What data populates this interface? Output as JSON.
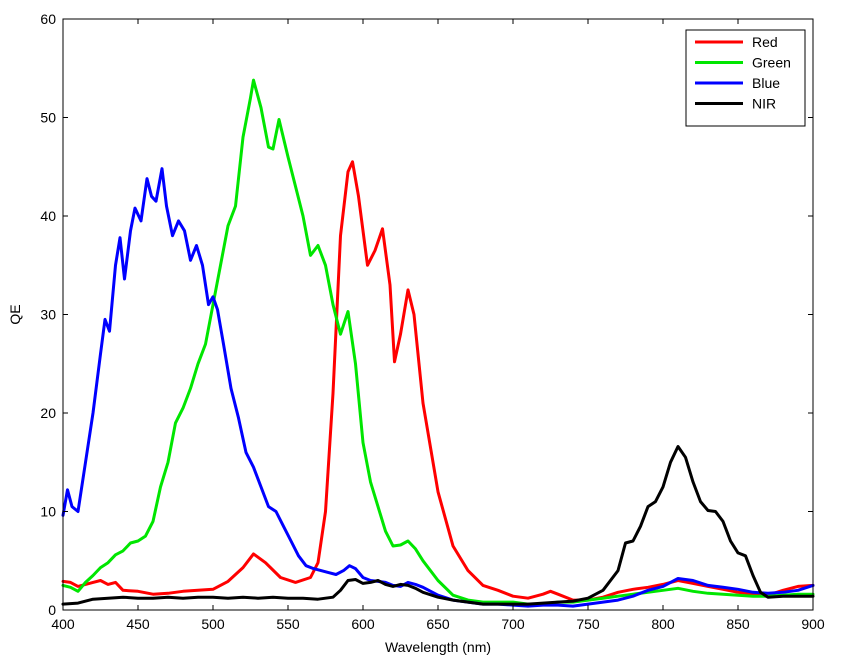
{
  "chart_data": {
    "type": "line",
    "title": "",
    "xlabel": "Wavelength (nm)",
    "ylabel": "QE",
    "xlim": [
      400,
      900
    ],
    "ylim": [
      0,
      60
    ],
    "xticks": [
      400,
      450,
      500,
      550,
      600,
      650,
      700,
      750,
      800,
      850,
      900
    ],
    "yticks": [
      0,
      10,
      20,
      30,
      40,
      50,
      60
    ],
    "xtick_labels": [
      "400",
      "450",
      "500",
      "550",
      "600",
      "650",
      "700",
      "750",
      "800",
      "850",
      "900"
    ],
    "ytick_labels": [
      "0",
      "10",
      "20",
      "30",
      "40",
      "50",
      "60"
    ],
    "grid": false,
    "legend_position": "top-right",
    "series": [
      {
        "name": "Red",
        "color": "#ff0000",
        "x": [
          400,
          405,
          410,
          420,
          425,
          430,
          435,
          440,
          450,
          460,
          470,
          480,
          490,
          500,
          510,
          520,
          527,
          535,
          545,
          555,
          565,
          570,
          575,
          580,
          585,
          590,
          593,
          597,
          603,
          608,
          613,
          618,
          621,
          625,
          630,
          634,
          640,
          650,
          660,
          670,
          680,
          690,
          700,
          710,
          720,
          725,
          730,
          740,
          750,
          760,
          770,
          780,
          790,
          800,
          810,
          820,
          830,
          840,
          850,
          860,
          870,
          880,
          890,
          900
        ],
        "y": [
          2.9,
          2.8,
          2.4,
          2.8,
          3.0,
          2.6,
          2.8,
          2.0,
          1.9,
          1.6,
          1.7,
          1.9,
          2.0,
          2.1,
          2.9,
          4.3,
          5.7,
          4.8,
          3.3,
          2.8,
          3.3,
          4.8,
          10.0,
          22.0,
          38.0,
          44.5,
          45.5,
          42.0,
          35.0,
          36.5,
          38.7,
          33.0,
          25.2,
          28.0,
          32.5,
          30.0,
          21.0,
          12.0,
          6.5,
          4.0,
          2.5,
          2.0,
          1.4,
          1.2,
          1.6,
          1.9,
          1.6,
          1.0,
          1.0,
          1.3,
          1.8,
          2.1,
          2.3,
          2.6,
          3.0,
          2.7,
          2.4,
          2.1,
          1.8,
          1.6,
          1.5,
          2.0,
          2.4,
          2.5
        ]
      },
      {
        "name": "Green",
        "color": "#00e600",
        "x": [
          400,
          405,
          410,
          415,
          420,
          425,
          430,
          435,
          440,
          445,
          450,
          455,
          460,
          465,
          470,
          475,
          480,
          485,
          490,
          495,
          500,
          505,
          510,
          515,
          520,
          525,
          527,
          532,
          537,
          540,
          544,
          550,
          555,
          560,
          565,
          570,
          575,
          580,
          585,
          590,
          595,
          600,
          605,
          610,
          615,
          620,
          625,
          630,
          635,
          640,
          650,
          660,
          670,
          680,
          690,
          700,
          710,
          720,
          730,
          740,
          750,
          760,
          770,
          780,
          790,
          800,
          810,
          820,
          830,
          840,
          850,
          860,
          870,
          880,
          890,
          900
        ],
        "y": [
          2.5,
          2.3,
          1.9,
          2.8,
          3.5,
          4.3,
          4.8,
          5.6,
          6.0,
          6.8,
          7.0,
          7.5,
          9.0,
          12.5,
          15.0,
          19.0,
          20.5,
          22.5,
          25.0,
          27.0,
          31.0,
          35.0,
          39.0,
          41.0,
          48.0,
          52.0,
          53.8,
          51.0,
          47.0,
          46.8,
          49.8,
          46.0,
          43.0,
          40.0,
          36.0,
          37.0,
          35.0,
          31.0,
          28.0,
          30.3,
          25.0,
          17.0,
          13.0,
          10.5,
          8.0,
          6.5,
          6.6,
          7.0,
          6.2,
          5.0,
          3.0,
          1.5,
          1.0,
          0.8,
          0.8,
          0.8,
          0.6,
          0.6,
          0.8,
          0.8,
          1.0,
          1.2,
          1.4,
          1.6,
          1.8,
          2.0,
          2.2,
          1.9,
          1.7,
          1.6,
          1.5,
          1.4,
          1.4,
          1.5,
          1.6,
          1.6
        ]
      },
      {
        "name": "Blue",
        "color": "#0000ff",
        "x": [
          400,
          403,
          406,
          410,
          415,
          420,
          425,
          428,
          431,
          435,
          438,
          441,
          445,
          448,
          452,
          456,
          459,
          462,
          466,
          469,
          473,
          477,
          481,
          485,
          489,
          493,
          497,
          500,
          503,
          507,
          512,
          517,
          522,
          527,
          532,
          537,
          542,
          547,
          552,
          557,
          562,
          567,
          572,
          577,
          582,
          587,
          591,
          595,
          600,
          605,
          610,
          615,
          620,
          625,
          630,
          635,
          640,
          650,
          660,
          670,
          680,
          690,
          700,
          710,
          720,
          730,
          740,
          750,
          760,
          770,
          780,
          790,
          800,
          810,
          820,
          830,
          840,
          850,
          860,
          870,
          880,
          890,
          900
        ],
        "y": [
          9.6,
          12.2,
          10.5,
          10.0,
          15.0,
          20.0,
          26.0,
          29.5,
          28.3,
          35.0,
          37.8,
          33.6,
          38.5,
          40.8,
          39.5,
          43.8,
          42.0,
          41.5,
          44.8,
          41.0,
          38.0,
          39.5,
          38.5,
          35.5,
          37.0,
          35.0,
          31.0,
          31.8,
          30.5,
          27.0,
          22.5,
          19.5,
          16.0,
          14.5,
          12.5,
          10.5,
          10.0,
          8.5,
          7.0,
          5.5,
          4.5,
          4.2,
          4.0,
          3.8,
          3.6,
          4.0,
          4.5,
          4.2,
          3.3,
          3.0,
          2.9,
          2.8,
          2.5,
          2.4,
          2.8,
          2.6,
          2.3,
          1.5,
          1.0,
          0.8,
          0.6,
          0.6,
          0.5,
          0.4,
          0.5,
          0.5,
          0.4,
          0.6,
          0.8,
          1.0,
          1.4,
          2.0,
          2.4,
          3.2,
          3.0,
          2.5,
          2.3,
          2.1,
          1.8,
          1.7,
          1.8,
          2.0,
          2.5
        ]
      },
      {
        "name": "NIR",
        "color": "#000000",
        "x": [
          400,
          410,
          420,
          430,
          440,
          450,
          460,
          470,
          480,
          490,
          500,
          510,
          520,
          530,
          540,
          550,
          560,
          570,
          580,
          585,
          590,
          595,
          600,
          605,
          610,
          615,
          620,
          625,
          630,
          635,
          640,
          650,
          660,
          670,
          680,
          690,
          700,
          710,
          720,
          730,
          740,
          750,
          760,
          770,
          775,
          780,
          785,
          790,
          795,
          800,
          805,
          810,
          815,
          820,
          825,
          830,
          835,
          840,
          845,
          850,
          855,
          860,
          865,
          870,
          880,
          890,
          900
        ],
        "y": [
          0.6,
          0.7,
          1.1,
          1.2,
          1.3,
          1.2,
          1.2,
          1.3,
          1.2,
          1.3,
          1.3,
          1.2,
          1.3,
          1.2,
          1.3,
          1.2,
          1.2,
          1.1,
          1.3,
          2.0,
          3.0,
          3.1,
          2.7,
          2.8,
          3.0,
          2.6,
          2.4,
          2.6,
          2.5,
          2.2,
          1.8,
          1.3,
          1.0,
          0.8,
          0.6,
          0.6,
          0.6,
          0.6,
          0.7,
          0.8,
          0.9,
          1.2,
          2.0,
          4.0,
          6.8,
          7.0,
          8.5,
          10.5,
          11.0,
          12.5,
          15.0,
          16.6,
          15.5,
          13.0,
          11.0,
          10.1,
          10.0,
          9.0,
          7.0,
          5.8,
          5.5,
          3.5,
          1.8,
          1.3,
          1.4,
          1.4,
          1.4
        ]
      }
    ]
  }
}
